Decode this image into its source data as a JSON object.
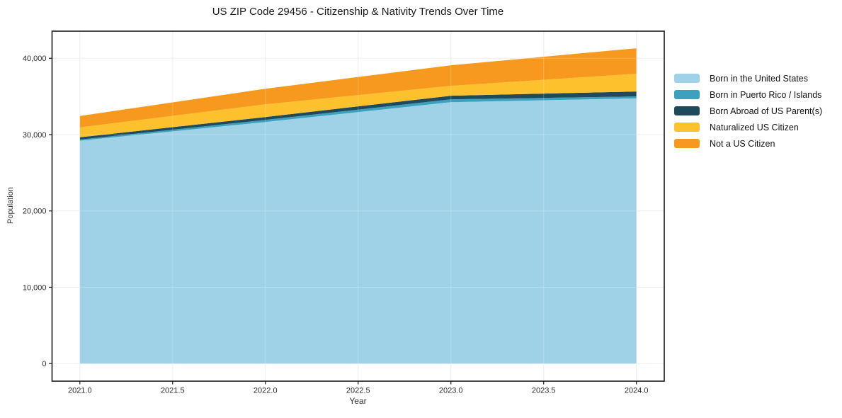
{
  "figure": {
    "title": "US ZIP Code 29456 - Citizenship & Nativity Trends Over Time",
    "xlabel": "Year",
    "ylabel": "Population"
  },
  "chart_data": {
    "type": "area",
    "stacked": true,
    "title": "US ZIP Code 29456 - Citizenship & Nativity Trends Over Time",
    "xlabel": "Year",
    "ylabel": "Population",
    "x": [
      2021,
      2022,
      2023,
      2024
    ],
    "series": [
      {
        "name": "Born in the United States",
        "color": "#9fd2e7",
        "values": [
          29200,
          31650,
          34250,
          34750
        ]
      },
      {
        "name": "Born in Puerto Rico / Islands",
        "color": "#3ba1be",
        "values": [
          150,
          280,
          370,
          250
        ]
      },
      {
        "name": "Born Abroad of US Parent(s)",
        "color": "#1f4a5c",
        "values": [
          300,
          370,
          470,
          650
        ]
      },
      {
        "name": "Naturalized US Citizen",
        "color": "#fcc12d",
        "values": [
          1300,
          1670,
          1300,
          2320
        ]
      },
      {
        "name": "Not a US Citizen",
        "color": "#f8991f",
        "values": [
          1490,
          2040,
          2690,
          3340
        ]
      }
    ],
    "stack_totals": [
      32440,
      36010,
      39080,
      41310
    ],
    "xlim": [
      2020.85,
      2024.15
    ],
    "ylim": [
      -2300,
      43550
    ],
    "x_ticks": [
      {
        "v": 2021.0,
        "label": "2021.0"
      },
      {
        "v": 2021.5,
        "label": "2021.5"
      },
      {
        "v": 2022.0,
        "label": "2022.0"
      },
      {
        "v": 2022.5,
        "label": "2022.5"
      },
      {
        "v": 2023.0,
        "label": "2023.0"
      },
      {
        "v": 2023.5,
        "label": "2023.5"
      },
      {
        "v": 2024.0,
        "label": "2024.0"
      }
    ],
    "y_ticks": [
      {
        "v": 0,
        "label": "0"
      },
      {
        "v": 10000,
        "label": "10,000"
      },
      {
        "v": 20000,
        "label": "20,000"
      },
      {
        "v": 30000,
        "label": "30,000"
      },
      {
        "v": 40000,
        "label": "40,000"
      }
    ],
    "grid": true,
    "grid_color": "#e9e9e9",
    "spine_color": "#1a1a1a",
    "tick_label_color": "#2b2b2b",
    "legend_position": "right-outside"
  }
}
